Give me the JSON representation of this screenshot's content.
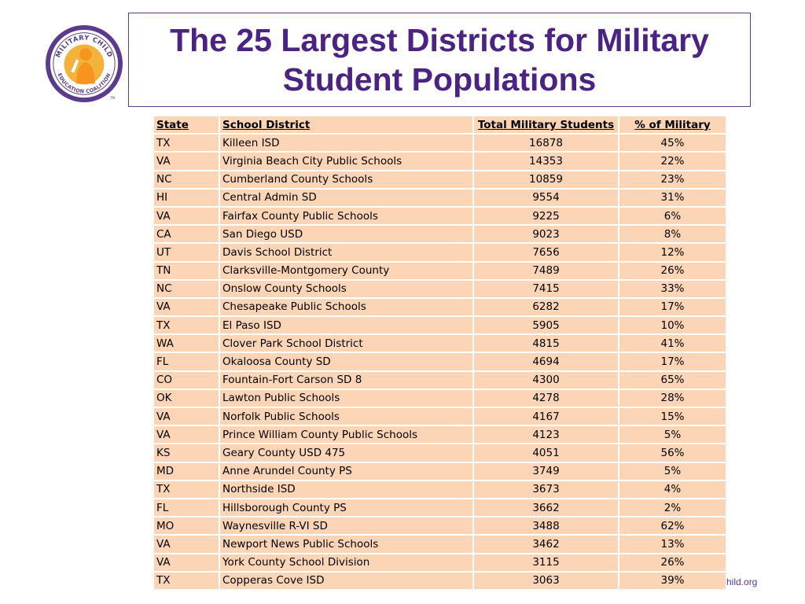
{
  "title": "The 25 Largest Districts for Military Student Populations",
  "logo": {
    "text_top": "MILITARY CHILD",
    "text_bottom": "EDUCATION COALITION",
    "tm": "TM",
    "colors": {
      "ring": "#5b3b8c",
      "inner": "#f3b23a",
      "figure": "#f7941d"
    }
  },
  "table": {
    "headers": [
      "State",
      "School District",
      "Total Military Students",
      "% of Military"
    ],
    "rows": [
      [
        "TX",
        "Killeen ISD",
        "16878",
        "45%"
      ],
      [
        "VA",
        "Virginia Beach City Public Schools",
        "14353",
        "22%"
      ],
      [
        "NC",
        "Cumberland County Schools",
        "10859",
        "23%"
      ],
      [
        "HI",
        "Central Admin SD",
        "9554",
        "31%"
      ],
      [
        "VA",
        "Fairfax County Public Schools",
        "9225",
        "6%"
      ],
      [
        "CA",
        "San Diego USD",
        "9023",
        "8%"
      ],
      [
        "UT",
        "Davis School District",
        "7656",
        "12%"
      ],
      [
        "TN",
        "Clarksville-Montgomery County",
        "7489",
        "26%"
      ],
      [
        "NC",
        "Onslow County Schools",
        "7415",
        "33%"
      ],
      [
        "VA",
        "Chesapeake Public Schools",
        "6282",
        "17%"
      ],
      [
        "TX",
        "El Paso ISD",
        "5905",
        "10%"
      ],
      [
        "WA",
        "Clover Park School District",
        "4815",
        "41%"
      ],
      [
        "FL",
        "Okaloosa County SD",
        "4694",
        "17%"
      ],
      [
        "CO",
        "Fountain-Fort Carson SD 8",
        "4300",
        "65%"
      ],
      [
        "OK",
        "Lawton Public Schools",
        "4278",
        "28%"
      ],
      [
        "VA",
        "Norfolk Public Schools",
        "4167",
        "15%"
      ],
      [
        "VA",
        "Prince William County Public Schools",
        "4123",
        "5%"
      ],
      [
        "KS",
        "Geary County USD 475",
        "4051",
        "56%"
      ],
      [
        "MD",
        "Anne Arundel County PS",
        "3749",
        "5%"
      ],
      [
        "TX",
        "Northside ISD",
        "3673",
        "4%"
      ],
      [
        "FL",
        "Hillsborough County PS",
        "3662",
        "2%"
      ],
      [
        "MO",
        "Waynesville R-VI SD",
        "3488",
        "62%"
      ],
      [
        "VA",
        "Newport News Public Schools",
        "3462",
        "13%"
      ],
      [
        "VA",
        "York County School Division",
        "3115",
        "26%"
      ],
      [
        "TX",
        "Copperas Cove ISD",
        "3063",
        "39%"
      ]
    ]
  },
  "footer": {
    "link_text": "hild.org"
  },
  "colors": {
    "title": "#4b2382",
    "table_fill": "#fbd5b5",
    "border": "#5b3b8c"
  }
}
